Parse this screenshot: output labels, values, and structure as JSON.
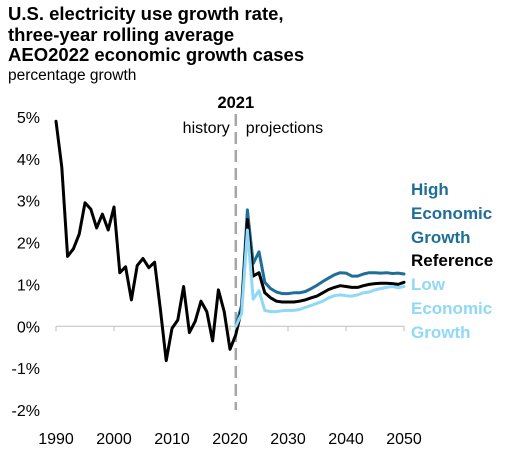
{
  "title": {
    "line1": "U.S. electricity use growth rate,",
    "line2": "three-year rolling average",
    "line3": "AEO2022 economic growth cases"
  },
  "ylabel": "percentage growth",
  "divider": {
    "year_label": "2021",
    "left_label": "history",
    "right_label": "projections"
  },
  "legend": [
    {
      "lines": [
        "High",
        "Economic",
        "Growth"
      ],
      "color": "#1f6e97"
    },
    {
      "lines": [
        "Reference"
      ],
      "color": "#000000"
    },
    {
      "lines": [
        "Low",
        "Economic",
        "Growth"
      ],
      "color": "#8fd8f7"
    }
  ],
  "chart_data": {
    "type": "line",
    "xlim": [
      1990,
      2050
    ],
    "ylim": [
      -2,
      5
    ],
    "x_ticks": [
      1990,
      2000,
      2010,
      2020,
      2030,
      2040,
      2050
    ],
    "y_ticks": [
      {
        "value": 5,
        "label": "5%"
      },
      {
        "value": 4,
        "label": "4%"
      },
      {
        "value": 3,
        "label": "3%"
      },
      {
        "value": 2,
        "label": "2%"
      },
      {
        "value": 1,
        "label": "1%"
      },
      {
        "value": 0,
        "label": "0%"
      },
      {
        "value": -1,
        "label": "-1%"
      },
      {
        "value": -2,
        "label": "-2%"
      }
    ],
    "divider_x": 2021,
    "series": [
      {
        "name": "High Economic Growth",
        "color": "#1f6e97",
        "points": [
          [
            2021,
            0.0
          ],
          [
            2022,
            0.5
          ],
          [
            2023,
            2.78
          ],
          [
            2024,
            1.5
          ],
          [
            2025,
            1.78
          ],
          [
            2026,
            1.05
          ],
          [
            2027,
            0.9
          ],
          [
            2028,
            0.82
          ],
          [
            2029,
            0.78
          ],
          [
            2030,
            0.78
          ],
          [
            2031,
            0.8
          ],
          [
            2032,
            0.8
          ],
          [
            2033,
            0.83
          ],
          [
            2034,
            0.9
          ],
          [
            2035,
            0.98
          ],
          [
            2036,
            1.07
          ],
          [
            2037,
            1.15
          ],
          [
            2038,
            1.23
          ],
          [
            2039,
            1.28
          ],
          [
            2040,
            1.27
          ],
          [
            2041,
            1.2
          ],
          [
            2042,
            1.2
          ],
          [
            2043,
            1.25
          ],
          [
            2044,
            1.28
          ],
          [
            2045,
            1.28
          ],
          [
            2046,
            1.27
          ],
          [
            2047,
            1.28
          ],
          [
            2048,
            1.26
          ],
          [
            2049,
            1.27
          ],
          [
            2050,
            1.25
          ]
        ]
      },
      {
        "name": "Reference",
        "color": "#000000",
        "points": [
          [
            1990,
            4.9
          ],
          [
            1991,
            3.8
          ],
          [
            1992,
            1.67
          ],
          [
            1993,
            1.85
          ],
          [
            1994,
            2.2
          ],
          [
            1995,
            2.95
          ],
          [
            1996,
            2.8
          ],
          [
            1997,
            2.35
          ],
          [
            1998,
            2.68
          ],
          [
            1999,
            2.3
          ],
          [
            2000,
            2.85
          ],
          [
            2001,
            1.28
          ],
          [
            2002,
            1.42
          ],
          [
            2003,
            0.63
          ],
          [
            2004,
            1.45
          ],
          [
            2005,
            1.62
          ],
          [
            2006,
            1.4
          ],
          [
            2007,
            1.53
          ],
          [
            2008,
            0.4
          ],
          [
            2009,
            -0.82
          ],
          [
            2010,
            -0.05
          ],
          [
            2011,
            0.15
          ],
          [
            2012,
            0.95
          ],
          [
            2013,
            -0.15
          ],
          [
            2014,
            0.12
          ],
          [
            2015,
            0.6
          ],
          [
            2016,
            0.35
          ],
          [
            2017,
            -0.35
          ],
          [
            2018,
            0.87
          ],
          [
            2019,
            0.35
          ],
          [
            2020,
            -0.55
          ],
          [
            2021,
            -0.2
          ],
          [
            2022,
            0.4
          ],
          [
            2023,
            2.55
          ],
          [
            2024,
            1.2
          ],
          [
            2025,
            1.28
          ],
          [
            2026,
            0.8
          ],
          [
            2027,
            0.68
          ],
          [
            2028,
            0.6
          ],
          [
            2029,
            0.58
          ],
          [
            2030,
            0.58
          ],
          [
            2031,
            0.58
          ],
          [
            2032,
            0.6
          ],
          [
            2033,
            0.63
          ],
          [
            2034,
            0.68
          ],
          [
            2035,
            0.72
          ],
          [
            2036,
            0.8
          ],
          [
            2037,
            0.88
          ],
          [
            2038,
            0.93
          ],
          [
            2039,
            0.97
          ],
          [
            2040,
            0.95
          ],
          [
            2041,
            0.93
          ],
          [
            2042,
            0.93
          ],
          [
            2043,
            0.97
          ],
          [
            2044,
            1.0
          ],
          [
            2045,
            1.02
          ],
          [
            2046,
            1.03
          ],
          [
            2047,
            1.03
          ],
          [
            2048,
            1.02
          ],
          [
            2049,
            1.0
          ],
          [
            2050,
            1.05
          ]
        ]
      },
      {
        "name": "Low Economic Growth",
        "color": "#8fd8f7",
        "points": [
          [
            2021,
            0.0
          ],
          [
            2022,
            0.3
          ],
          [
            2023,
            2.3
          ],
          [
            2024,
            0.65
          ],
          [
            2025,
            0.85
          ],
          [
            2026,
            0.38
          ],
          [
            2027,
            0.35
          ],
          [
            2028,
            0.35
          ],
          [
            2029,
            0.37
          ],
          [
            2030,
            0.38
          ],
          [
            2031,
            0.38
          ],
          [
            2032,
            0.4
          ],
          [
            2033,
            0.45
          ],
          [
            2034,
            0.5
          ],
          [
            2035,
            0.55
          ],
          [
            2036,
            0.6
          ],
          [
            2037,
            0.68
          ],
          [
            2038,
            0.73
          ],
          [
            2039,
            0.75
          ],
          [
            2040,
            0.73
          ],
          [
            2041,
            0.72
          ],
          [
            2042,
            0.75
          ],
          [
            2043,
            0.8
          ],
          [
            2044,
            0.82
          ],
          [
            2045,
            0.87
          ],
          [
            2046,
            0.9
          ],
          [
            2047,
            0.93
          ],
          [
            2048,
            0.95
          ],
          [
            2049,
            0.92
          ],
          [
            2050,
            0.95
          ]
        ]
      }
    ]
  }
}
